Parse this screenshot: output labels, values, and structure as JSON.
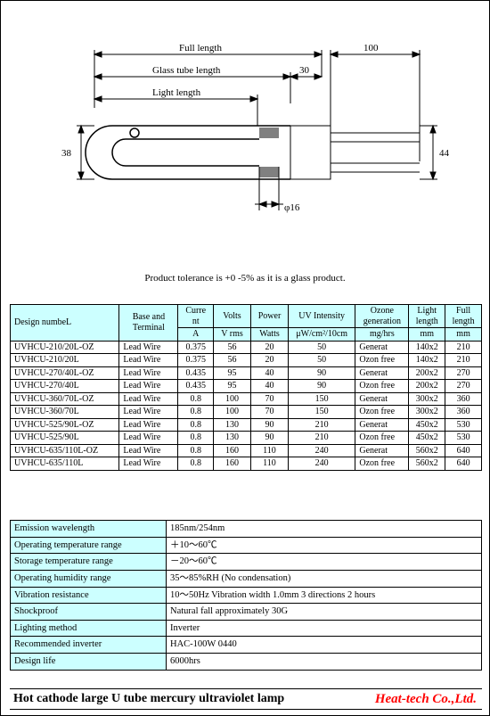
{
  "diagram": {
    "full_length_label": "Full length",
    "glass_tube_label": "Glass tube length",
    "light_length_label": "Light length",
    "dim_30": "30",
    "dim_100": "100",
    "dim_38": "38",
    "dim_44": "44",
    "dim_phi16": "φ16"
  },
  "tolerance_note": "Product tolerance is +0 -5% as it is a glass product.",
  "columns": [
    {
      "h": "Design numbeL",
      "u": ""
    },
    {
      "h": "Base and Terminal",
      "u": ""
    },
    {
      "h": "Current",
      "u": "A"
    },
    {
      "h": "Volts",
      "u": "V rms"
    },
    {
      "h": "Power",
      "u": "Watts"
    },
    {
      "h": "UV Intensity",
      "u": "μW/cm²/10cm"
    },
    {
      "h": "Ozone generation",
      "u": "mg/hrs"
    },
    {
      "h": "Light length",
      "u": "mm"
    },
    {
      "h": "Full length",
      "u": "mm"
    }
  ],
  "rows": [
    [
      "UVHCU-210/20L-OZ",
      "Lead Wire",
      "0.375",
      "56",
      "20",
      "50",
      "Generat",
      "140x2",
      "210"
    ],
    [
      "UVHCU-210/20L",
      "Lead Wire",
      "0.375",
      "56",
      "20",
      "50",
      "Ozon free",
      "140x2",
      "210"
    ],
    [
      "UVHCU-270/40L-OZ",
      "Lead Wire",
      "0.435",
      "95",
      "40",
      "90",
      "Generat",
      "200x2",
      "270"
    ],
    [
      "UVHCU-270/40L",
      "Lead Wire",
      "0.435",
      "95",
      "40",
      "90",
      "Ozon free",
      "200x2",
      "270"
    ],
    [
      "UVHCU-360/70L-OZ",
      "Lead Wire",
      "0.8",
      "100",
      "70",
      "150",
      "Generat",
      "300x2",
      "360"
    ],
    [
      "UVHCU-360/70L",
      "Lead Wire",
      "0.8",
      "100",
      "70",
      "150",
      "Ozon free",
      "300x2",
      "360"
    ],
    [
      "UVHCU-525/90L-OZ",
      "Lead Wire",
      "0.8",
      "130",
      "90",
      "210",
      "Generat",
      "450x2",
      "530"
    ],
    [
      "UVHCU-525/90L",
      "Lead Wire",
      "0.8",
      "130",
      "90",
      "210",
      "Ozon free",
      "450x2",
      "530"
    ],
    [
      "UVHCU-635/110L-OZ",
      "Lead Wire",
      "0.8",
      "160",
      "110",
      "240",
      "Generat",
      "560x2",
      "640"
    ],
    [
      "UVHCU-635/110L",
      "Lead Wire",
      "0.8",
      "160",
      "110",
      "240",
      "Ozon free",
      "560x2",
      "640"
    ]
  ],
  "specs": [
    [
      "Emission wavelength",
      "185nm/254nm"
    ],
    [
      "Operating temperature range",
      "＋10～60℃"
    ],
    [
      "Storage temperature range",
      "－20～60℃"
    ],
    [
      "Operating humidity range",
      "35～85%RH (No condensation)"
    ],
    [
      "Vibration resistance",
      "10～50Hz Vibration width 1.0mm 3 directions 2 hours"
    ],
    [
      "Shockproof",
      "Natural fall approximately 30G"
    ],
    [
      "Lighting method",
      "Inverter"
    ],
    [
      "Recommended inverter",
      "HAC-100W 0440"
    ],
    [
      "Design life",
      "6000hrs"
    ]
  ],
  "footer_title": "Hot cathode large U tube mercury ultraviolet lamp",
  "brand": "Heat-tech Co.,Ltd."
}
